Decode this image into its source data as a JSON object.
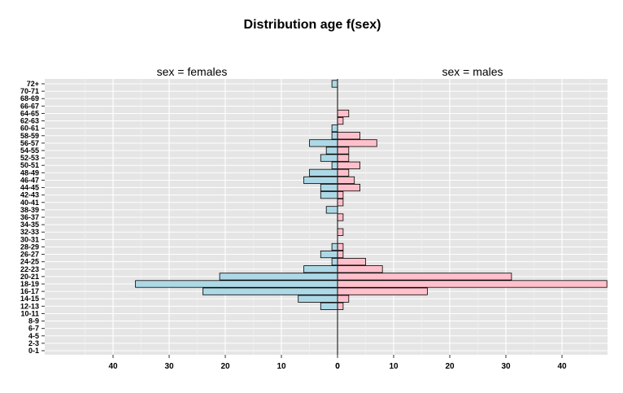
{
  "chart_data": {
    "type": "bar",
    "orientation": "horizontal",
    "title": "Distribution age f(sex)",
    "categories": [
      "0-1",
      "2-3",
      "4-5",
      "6-7",
      "8-9",
      "10-11",
      "12-13",
      "14-15",
      "16-17",
      "18-19",
      "20-21",
      "22-23",
      "24-25",
      "26-27",
      "28-29",
      "30-31",
      "32-33",
      "34-35",
      "36-37",
      "38-39",
      "40-41",
      "42-43",
      "44-45",
      "46-47",
      "48-49",
      "50-51",
      "52-53",
      "54-55",
      "56-57",
      "58-59",
      "60-61",
      "62-63",
      "64-65",
      "66-67",
      "68-69",
      "70-71",
      "72+"
    ],
    "panels": [
      {
        "strip": "sex = females",
        "fill": "#add8e6",
        "values": [
          0,
          0,
          0,
          0,
          0,
          0,
          3,
          7,
          24,
          36,
          21,
          6,
          1,
          3,
          1,
          0,
          0,
          0,
          0,
          2,
          0,
          3,
          3,
          6,
          5,
          1,
          3,
          2,
          5,
          1,
          1,
          0,
          0,
          0,
          0,
          0,
          1
        ],
        "x_ticks": [
          "40",
          "30",
          "20",
          "10",
          "0"
        ],
        "xlim": [
          48,
          0
        ]
      },
      {
        "strip": "sex = males",
        "fill": "#ffc0cb",
        "values": [
          0,
          0,
          0,
          0,
          0,
          0,
          1,
          2,
          16,
          48,
          31,
          8,
          5,
          1,
          1,
          0,
          1,
          0,
          1,
          0,
          1,
          1,
          4,
          3,
          2,
          4,
          2,
          2,
          7,
          4,
          0,
          1,
          2,
          0,
          0,
          0,
          0
        ],
        "x_ticks": [
          "0",
          "10",
          "20",
          "30",
          "40"
        ],
        "xlim": [
          0,
          48
        ]
      }
    ],
    "grid": true,
    "legend": "none"
  }
}
